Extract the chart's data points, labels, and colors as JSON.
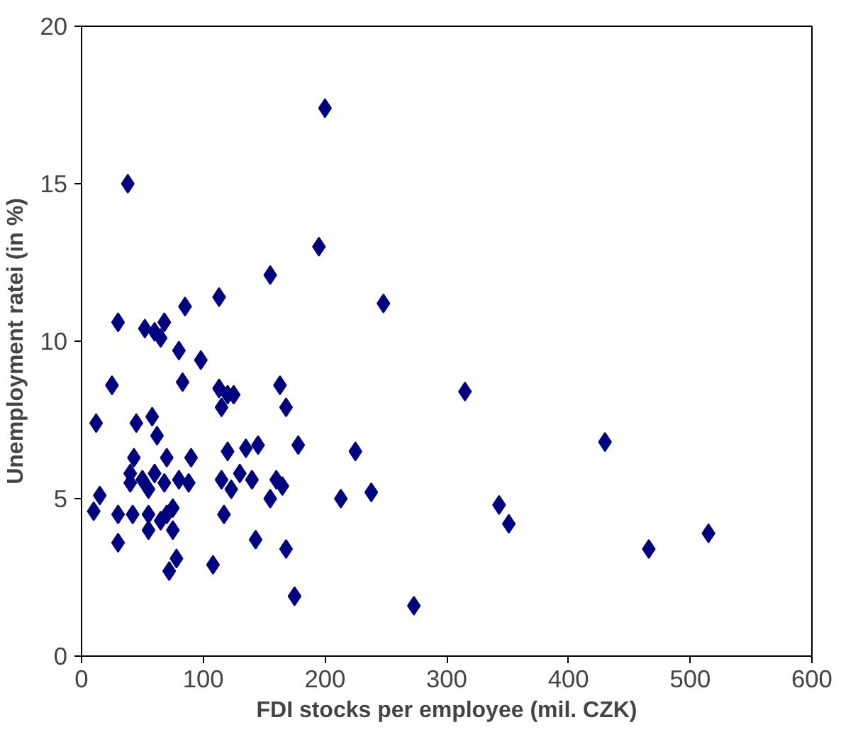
{
  "chart_data": {
    "type": "scatter",
    "xlabel": "FDI stocks per employee (mil. CZK)",
    "ylabel": "Unemployment ratei (in %)",
    "xlim": [
      0,
      600
    ],
    "ylim": [
      0,
      20
    ],
    "xticks": [
      0,
      100,
      200,
      300,
      400,
      500,
      600
    ],
    "yticks": [
      0,
      5,
      10,
      15,
      20
    ],
    "grid": false,
    "marker": "diamond",
    "series": [
      {
        "color": "#000080",
        "x": [
          12,
          10,
          15,
          25,
          30,
          30,
          30,
          38,
          40,
          40,
          42,
          43,
          45,
          50,
          52,
          55,
          55,
          55,
          58,
          60,
          60,
          62,
          65,
          65,
          68,
          68,
          70,
          70,
          72,
          75,
          75,
          78,
          80,
          80,
          83,
          85,
          88,
          90,
          98,
          108,
          113,
          113,
          115,
          115,
          117,
          120,
          120,
          123,
          125,
          130,
          135,
          140,
          143,
          145,
          155,
          155,
          160,
          163,
          165,
          168,
          168,
          175,
          178,
          195,
          200,
          213,
          225,
          238,
          248,
          273,
          315,
          343,
          351,
          430,
          466,
          515
        ],
        "values": [
          7.4,
          4.6,
          5.1,
          8.6,
          10.6,
          4.5,
          3.6,
          15,
          5.5,
          5.8,
          4.5,
          6.3,
          7.4,
          5.6,
          10.4,
          4.5,
          4.0,
          5.3,
          7.6,
          10.3,
          5.8,
          7.0,
          10.1,
          4.3,
          10.6,
          5.5,
          6.3,
          4.5,
          2.7,
          4.7,
          4.0,
          3.1,
          9.7,
          5.6,
          8.7,
          11.1,
          5.5,
          6.3,
          9.4,
          2.9,
          11.4,
          8.5,
          7.9,
          5.6,
          4.5,
          8.3,
          6.5,
          5.3,
          8.3,
          5.8,
          6.6,
          5.6,
          3.7,
          6.7,
          12.1,
          5.0,
          5.6,
          8.6,
          5.4,
          3.4,
          7.9,
          1.9,
          6.7,
          13,
          17.4,
          5.0,
          6.5,
          5.2,
          11.2,
          1.6,
          8.4,
          4.8,
          4.2,
          6.8,
          3.4,
          3.9
        ]
      }
    ]
  }
}
